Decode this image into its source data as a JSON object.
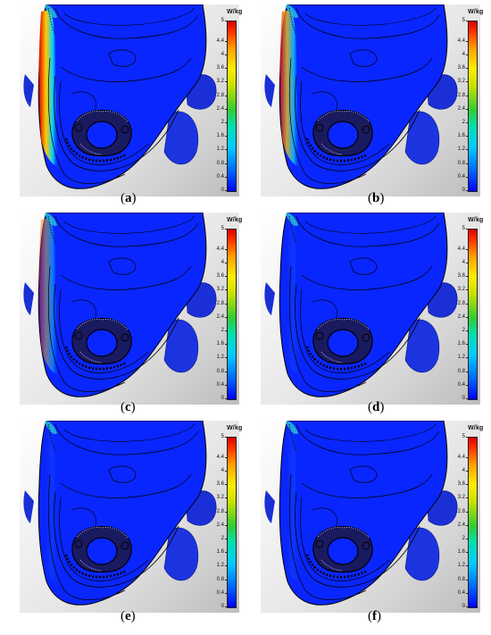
{
  "colorbar": {
    "unit": "W/kg",
    "ticks": [
      "0",
      "0.4",
      "0.8",
      "1.2",
      "1.6",
      "2",
      "2.4",
      "2.8",
      "3.2",
      "3.6",
      "4",
      "4.4",
      "5"
    ],
    "min": 0,
    "max": 5,
    "colors": [
      "#0000ff",
      "#00ccff",
      "#33cc33",
      "#ffee00",
      "#ff3000",
      "#e00000"
    ]
  },
  "panels": [
    {
      "id": "a",
      "label": "a",
      "hotspot": "strong"
    },
    {
      "id": "b",
      "label": "b",
      "hotspot": "medium"
    },
    {
      "id": "c",
      "label": "c",
      "hotspot": "weak"
    },
    {
      "id": "d",
      "label": "d",
      "hotspot": "faint"
    },
    {
      "id": "e",
      "label": "e",
      "hotspot": "faint"
    },
    {
      "id": "f",
      "label": "f",
      "hotspot": "faint"
    }
  ]
}
